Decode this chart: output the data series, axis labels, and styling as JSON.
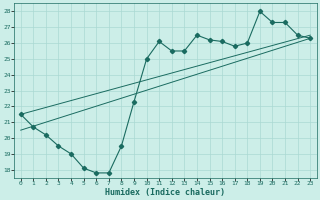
{
  "title": "",
  "xlabel": "Humidex (Indice chaleur)",
  "ylabel": "",
  "bg_color": "#cceee8",
  "grid_color": "#aad9d3",
  "line_color": "#1a6b60",
  "xlim": [
    -0.5,
    23.5
  ],
  "ylim": [
    17.5,
    28.5
  ],
  "yticks": [
    18,
    19,
    20,
    21,
    22,
    23,
    24,
    25,
    26,
    27,
    28
  ],
  "xticks": [
    0,
    1,
    2,
    3,
    4,
    5,
    6,
    7,
    8,
    9,
    10,
    11,
    12,
    13,
    14,
    15,
    16,
    17,
    18,
    19,
    20,
    21,
    22,
    23
  ],
  "line1_x": [
    0,
    1,
    2,
    3,
    4,
    5,
    6,
    7,
    8,
    9,
    10,
    11,
    12,
    13,
    14,
    15,
    16,
    17,
    18,
    19,
    20,
    21,
    22,
    23
  ],
  "line1_y": [
    21.5,
    20.7,
    20.2,
    19.5,
    19.0,
    18.1,
    17.8,
    17.8,
    19.5,
    22.3,
    25.0,
    26.1,
    25.5,
    25.5,
    26.5,
    26.2,
    26.1,
    25.8,
    26.0,
    28.0,
    27.3,
    27.3,
    26.5,
    26.3
  ],
  "line2_x": [
    0,
    23
  ],
  "line2_y": [
    20.5,
    26.3
  ],
  "line3_x": [
    0,
    23
  ],
  "line3_y": [
    21.5,
    26.5
  ]
}
